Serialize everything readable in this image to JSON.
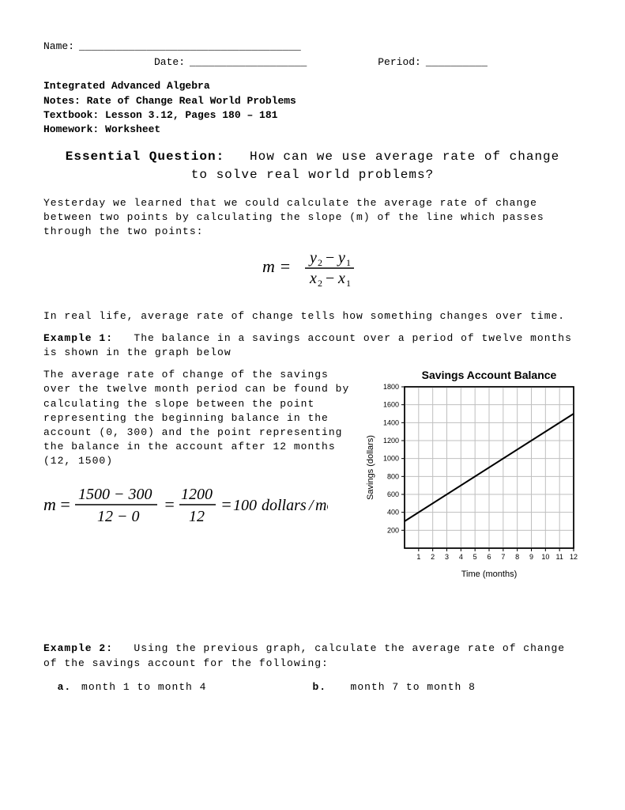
{
  "header": {
    "name_label": "Name:",
    "name_blank": "____________________________________",
    "date_label": "Date:",
    "date_blank": "___________________",
    "period_label": "Period:",
    "period_blank": "__________"
  },
  "course_block": {
    "line1": "Integrated Advanced Algebra",
    "line2": "Notes:  Rate of Change Real World Problems",
    "line3": "Textbook:  Lesson 3.12, Pages 180 – 181",
    "line4": "Homework:  Worksheet"
  },
  "essential": {
    "label": "Essential Question:",
    "text_line1": "How can we use average rate of change",
    "text_line2": "to solve real world problems?"
  },
  "intro_para": "Yesterday we learned that we could calculate the average rate of change between two points by calculating the slope (m) of the line which passes through the two points:",
  "slope_formula": {
    "lhs": "m =",
    "num": "y₂ − y₁",
    "den": "x₂ − x₁"
  },
  "real_life": "In real life, average rate of change tells how something changes over time.",
  "example1": {
    "label": "Example 1:",
    "intro": "The balance in a savings account over a period of twelve months is shown in the graph below",
    "desc": "The average rate of change of the savings over the twelve month period can be found by calculating the slope between the point representing the beginning balance in the account (0, 300) and the point representing the balance in the account after 12 months (12, 1500)",
    "calc": {
      "lhs": "m",
      "num1": "1500 − 300",
      "den1": "12 − 0",
      "num2": "1200",
      "den2": "12",
      "result": "100",
      "units": "dollars / month"
    }
  },
  "chart": {
    "type": "line",
    "title": "Savings Account Balance",
    "title_fontsize": 14,
    "xlabel": "Time (months)",
    "ylabel": "Savings (dollars)",
    "label_fontsize": 11,
    "xlim": [
      0,
      12
    ],
    "ylim": [
      0,
      1800
    ],
    "xtick_step": 1,
    "ytick_step": 200,
    "x_values": [
      0,
      12
    ],
    "y_values": [
      300,
      1500
    ],
    "line_color": "#000000",
    "line_width": 2,
    "background_color": "#ffffff",
    "grid_color": "#bfbfbf",
    "axis_color": "#000000",
    "tick_fontsize": 9
  },
  "example2": {
    "label": "Example 2:",
    "text": "Using the previous graph, calculate the average rate of change of the savings account for the following:",
    "a_label": "a.",
    "a_text": "month 1 to month 4",
    "b_label": "b.",
    "b_text": "month 7 to month 8"
  }
}
